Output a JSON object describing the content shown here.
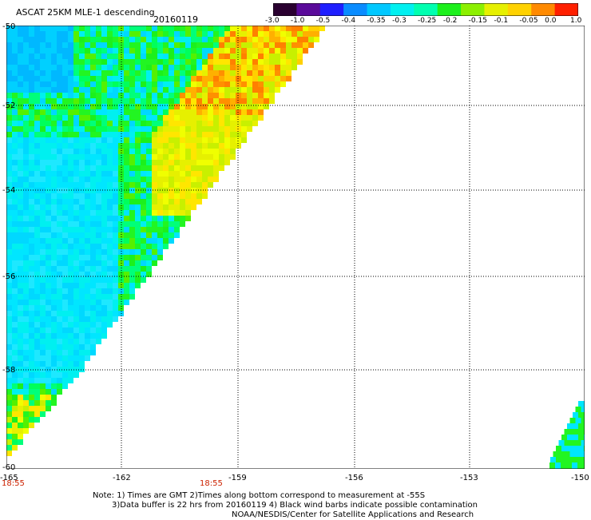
{
  "header": {
    "title": "ASCAT 25KM MLE-1 descending",
    "date": "20160119"
  },
  "colorbar": {
    "labels": [
      "-3.0",
      "-1.0",
      "-0.5",
      "-0.4",
      "-0.35",
      "-0.3",
      "-0.25",
      "-0.2",
      "-0.15",
      "-0.1",
      "-0.05",
      "0.0",
      "1.0"
    ],
    "stops": [
      "#2a0030",
      "#5a0a9a",
      "#1f1fff",
      "#0a8cff",
      "#00c8ff",
      "#00f0f0",
      "#00ffb0",
      "#1cf01c",
      "#8cf000",
      "#e6f000",
      "#ffd200",
      "#ff8a00",
      "#ff2000"
    ]
  },
  "map": {
    "lat_labels": [
      "-50",
      "-52",
      "-54",
      "-56",
      "-58",
      "-60"
    ],
    "lon_labels": [
      "-165",
      "-162",
      "-159",
      "-156",
      "-153",
      "-150"
    ],
    "lat_range": [
      -60,
      -50
    ],
    "lon_range": [
      -165,
      -150
    ],
    "grid": true
  },
  "times": [
    "18:55",
    "18:55"
  ],
  "notes": {
    "line1": "Note: 1) Times are GMT 2)Times along bottom correspond to measurement at -55S",
    "line2": "3)Data buffer is 22 hrs from 20160119 4) Black wind barbs indicate possible contamination",
    "line3": "NOAA/NESDIS/Center for Satellite Applications and Research"
  }
}
